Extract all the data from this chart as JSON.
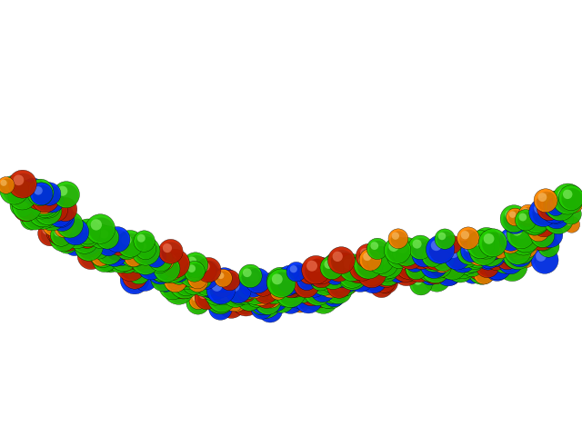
{
  "background_color": "#ffffff",
  "atom_colors": {
    "carbon": "#22cc00",
    "nitrogen": "#0033ff",
    "oxygen": "#cc2200",
    "phosphorus": "#ff8800"
  },
  "atom_highlights": {
    "carbon": "#99ff77",
    "nitrogen": "#7799ff",
    "oxygen": "#ff8866",
    "phosphorus": "#ffcc77"
  },
  "figsize": [
    6.4,
    4.8
  ],
  "dpi": 100,
  "n_nucleotides": 30
}
